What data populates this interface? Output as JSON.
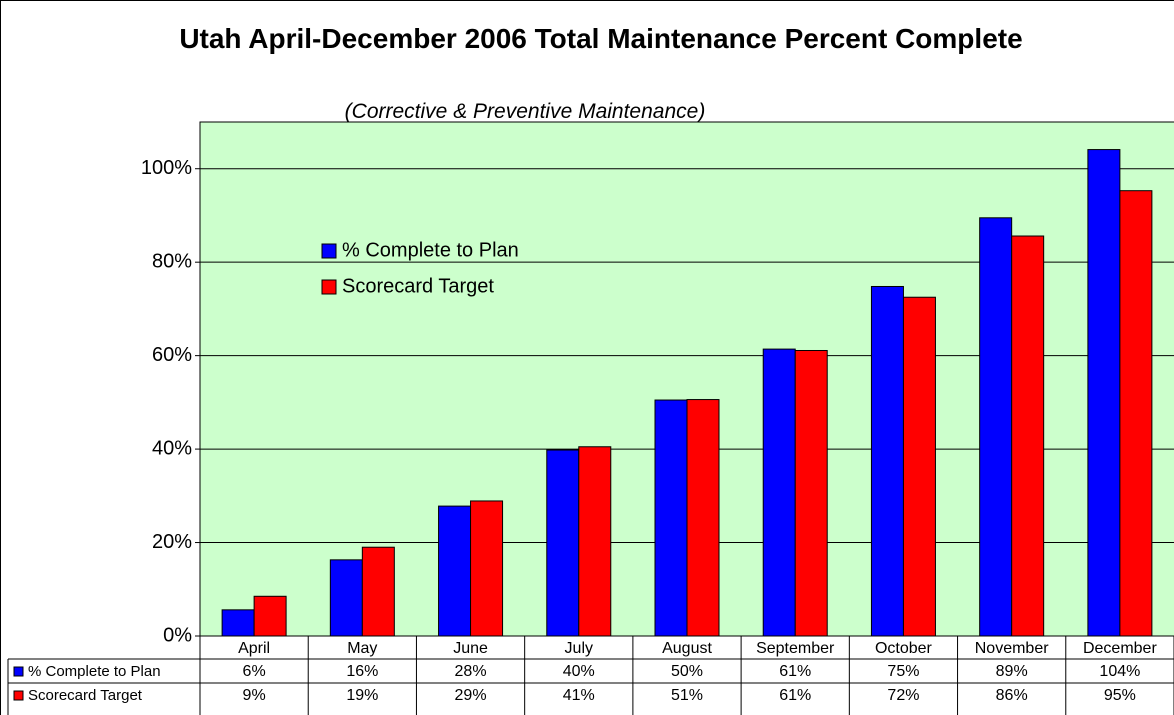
{
  "chart_data": {
    "type": "bar",
    "title": "Utah April-December 2006 Total Maintenance Percent Complete",
    "subtitle": "(Corrective & Preventive Maintenance)",
    "categories": [
      "April",
      "May",
      "June",
      "July",
      "August",
      "September",
      "October",
      "November",
      "December"
    ],
    "series": [
      {
        "name": "% Complete to Plan",
        "color": "#0000ff",
        "values": [
          5.6,
          16.3,
          27.8,
          39.8,
          50.5,
          61.4,
          74.8,
          89.5,
          104.1
        ],
        "value_labels": [
          "6%",
          "16%",
          "28%",
          "40%",
          "50%",
          "61%",
          "75%",
          "89%",
          "104%"
        ]
      },
      {
        "name": "Scorecard Target",
        "color": "#ff0000",
        "values": [
          8.5,
          19.0,
          28.9,
          40.5,
          50.6,
          61.1,
          72.5,
          85.6,
          95.3
        ],
        "value_labels": [
          "9%",
          "19%",
          "29%",
          "41%",
          "51%",
          "61%",
          "72%",
          "86%",
          "95%"
        ]
      }
    ],
    "ylim": [
      0,
      110
    ],
    "yticks": [
      {
        "value": 0,
        "label": "0%"
      },
      {
        "value": 20,
        "label": "20%"
      },
      {
        "value": 40,
        "label": "40%"
      },
      {
        "value": 60,
        "label": "60%"
      },
      {
        "value": 80,
        "label": "80%"
      },
      {
        "value": 100,
        "label": "100%"
      }
    ],
    "grid": true,
    "legend_position": "upper left",
    "background": "#ccffcc"
  }
}
